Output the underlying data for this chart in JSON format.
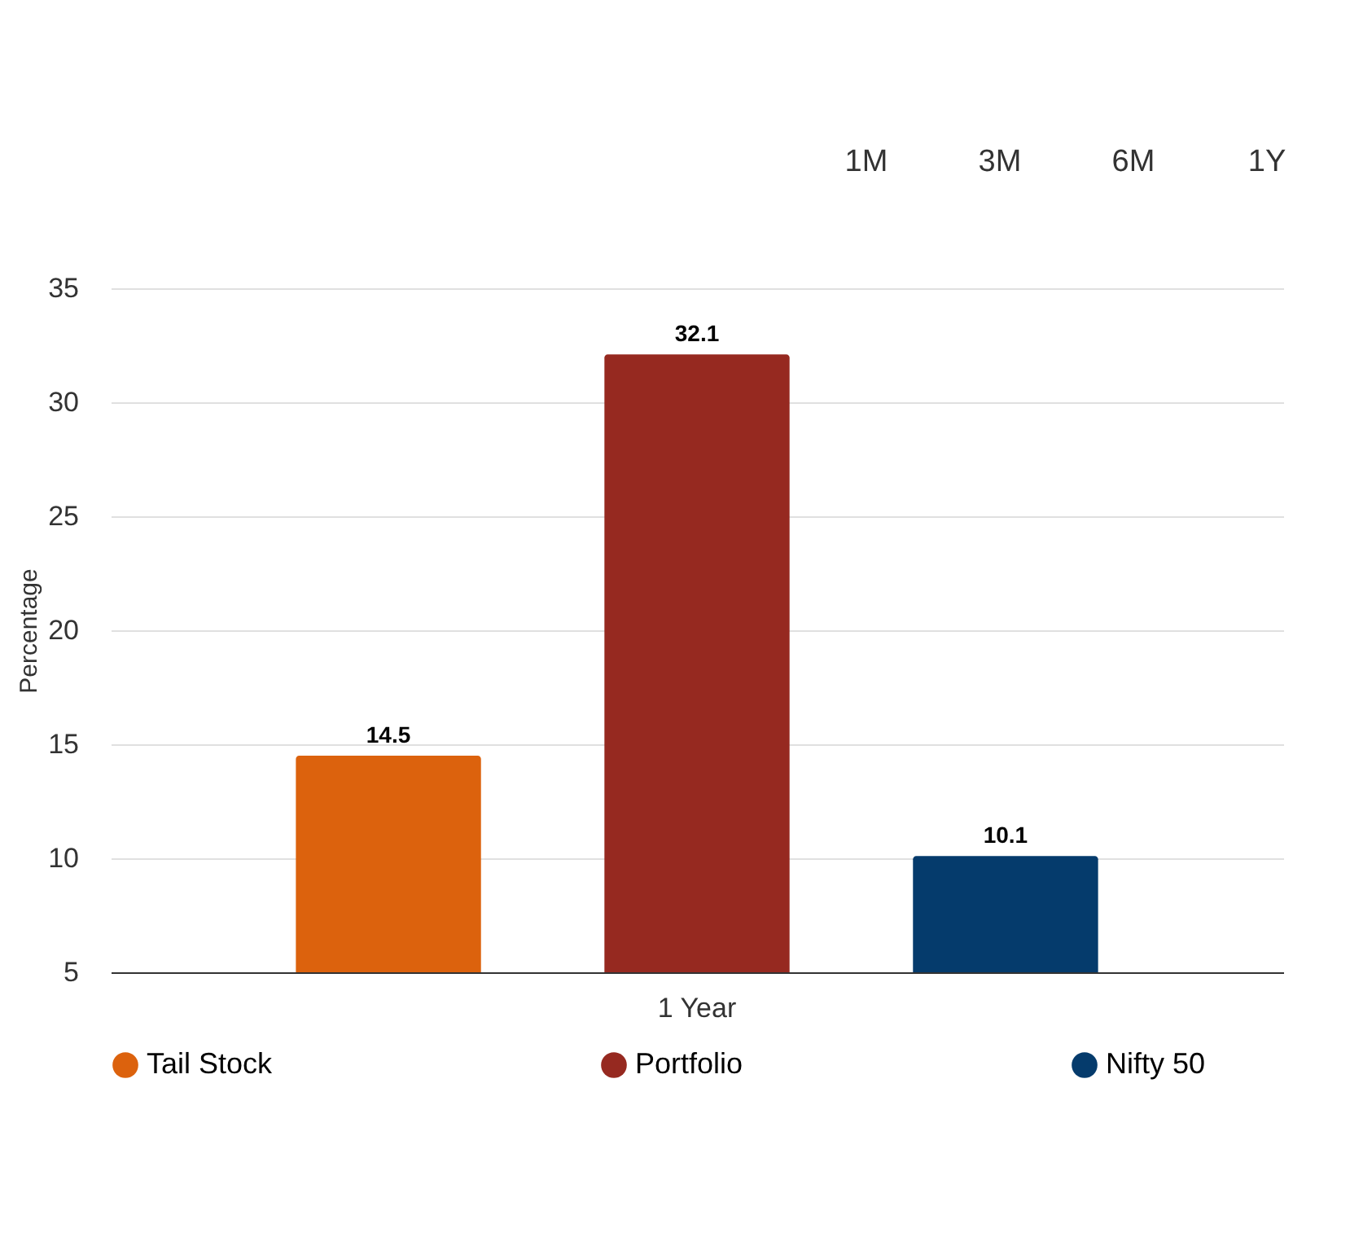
{
  "chart_data": {
    "type": "bar",
    "ylabel": "Percentage",
    "categories": [
      "1 Year"
    ],
    "series": [
      {
        "name": "Tail Stock",
        "color": "#dc620d",
        "values": [
          14.5
        ]
      },
      {
        "name": "Portfolio",
        "color": "#962920",
        "values": [
          32.1
        ]
      },
      {
        "name": "Nifty 50",
        "color": "#053b6c",
        "values": [
          10.1
        ]
      }
    ],
    "ylim": [
      5,
      35
    ],
    "yticks": [
      5,
      10,
      15,
      20,
      25,
      30,
      35
    ],
    "grid": "y",
    "legend": "bottom",
    "data_labels": true,
    "annotations": [
      "1M",
      "3M",
      "6M",
      "1Y"
    ]
  }
}
